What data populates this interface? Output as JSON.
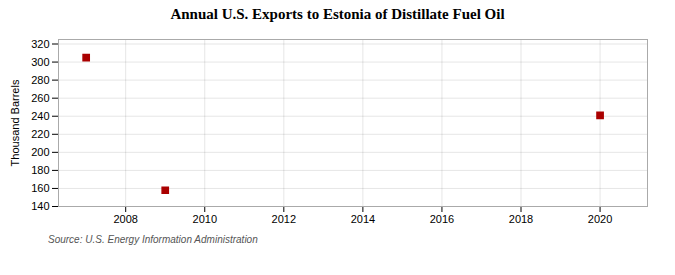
{
  "chart_data": {
    "type": "scatter",
    "title": "Annual U.S. Exports to Estonia of Distillate Fuel Oil",
    "y_label": "Thousand Barrels",
    "source": "Source: U.S. Energy Information Administration",
    "x": [
      2007,
      2009,
      2020
    ],
    "values": [
      305,
      158,
      241
    ],
    "color": "#aa0000",
    "marker": "square",
    "xlim": [
      2006.3,
      2021.2
    ],
    "xticks": [
      2008,
      2010,
      2012,
      2014,
      2016,
      2018,
      2020
    ],
    "ylim": [
      140,
      325
    ],
    "yticks": [
      140,
      160,
      180,
      200,
      220,
      240,
      260,
      280,
      300,
      320
    ],
    "grid": true
  }
}
